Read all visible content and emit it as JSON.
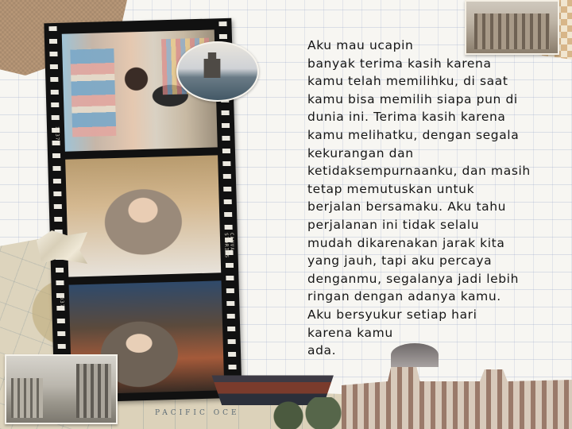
{
  "poem": {
    "text": "Aku mau ucapin\nbanyak terima kasih karena\nkamu telah memilihku, di saat\nkamu bisa memilih siapa pun di\ndunia ini. Terima kasih karena\nkamu melihatku, dengan segala\nkekurangan dan\nketidaksempurnaanku, dan masih\ntetap memutuskan untuk\nberjalan bersamaku. Aku tahu\nperjalanan ini tidak selalu\nmudah dikarenakan jarak kita\nyang jauh, tapi aku percaya\ndenganmu, segalanya jadi lebih\nringan dengan adanya kamu.\nAku bersyukur setiap hari\nkarena kamu\nada."
  },
  "film": {
    "label_top": "CANVA STORIES",
    "number_a": "1037",
    "number_b": "1037"
  },
  "map": {
    "label": "PACIFIC OCE"
  },
  "colors": {
    "paper": "#f7f6f2",
    "ink": "#151515",
    "film": "#111111",
    "kraft": "#b89878"
  }
}
